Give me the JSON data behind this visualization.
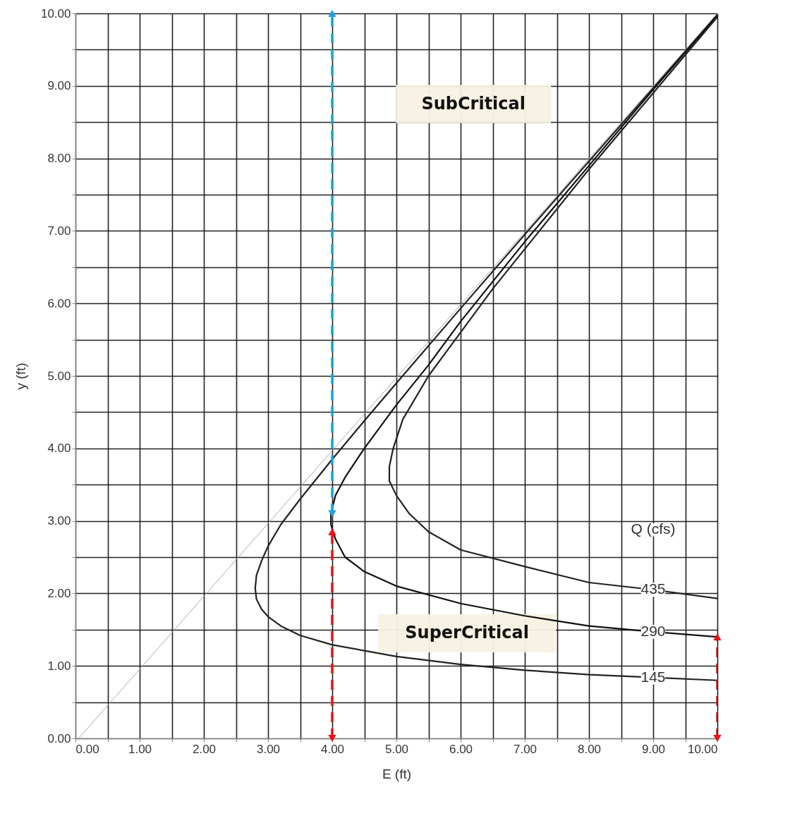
{
  "chart_data": {
    "type": "line",
    "xlabel": "E (ft)",
    "ylabel": "y (ft)",
    "legend_title": "Q (cfs)",
    "xlim": [
      0,
      10
    ],
    "ylim": [
      0,
      10
    ],
    "xticks": [
      {
        "value": 0,
        "label": "0.00"
      },
      {
        "value": 0.5,
        "label": null
      },
      {
        "value": 1,
        "label": "1.00"
      },
      {
        "value": 1.5,
        "label": null
      },
      {
        "value": 2,
        "label": "2.00"
      },
      {
        "value": 2.5,
        "label": null
      },
      {
        "value": 3,
        "label": "3.00"
      },
      {
        "value": 3.5,
        "label": null
      },
      {
        "value": 4,
        "label": "4.00"
      },
      {
        "value": 4.5,
        "label": null
      },
      {
        "value": 5,
        "label": "5.00"
      },
      {
        "value": 5.5,
        "label": null
      },
      {
        "value": 6,
        "label": "6.00"
      },
      {
        "value": 6.5,
        "label": null
      },
      {
        "value": 7,
        "label": "7.00"
      },
      {
        "value": 7.5,
        "label": null
      },
      {
        "value": 8,
        "label": "8.00"
      },
      {
        "value": 8.5,
        "label": null
      },
      {
        "value": 9,
        "label": "9.00"
      },
      {
        "value": 9.5,
        "label": null
      },
      {
        "value": 10,
        "label": "10.00"
      }
    ],
    "yticks": [
      {
        "value": 0,
        "label": "0.00"
      },
      {
        "value": 0.5,
        "label": null
      },
      {
        "value": 1,
        "label": "1.00"
      },
      {
        "value": 1.5,
        "label": null
      },
      {
        "value": 2,
        "label": "2.00"
      },
      {
        "value": 2.5,
        "label": null
      },
      {
        "value": 3,
        "label": "3.00"
      },
      {
        "value": 3.5,
        "label": null
      },
      {
        "value": 4,
        "label": "4.00"
      },
      {
        "value": 4.5,
        "label": null
      },
      {
        "value": 5,
        "label": "5.00"
      },
      {
        "value": 5.5,
        "label": null
      },
      {
        "value": 6,
        "label": "6.00"
      },
      {
        "value": 6.5,
        "label": null
      },
      {
        "value": 7,
        "label": "7.00"
      },
      {
        "value": 7.5,
        "label": null
      },
      {
        "value": 8,
        "label": "8.00"
      },
      {
        "value": 8.5,
        "label": null
      },
      {
        "value": 9,
        "label": "9.00"
      },
      {
        "value": 9.5,
        "label": null
      },
      {
        "value": 10,
        "label": "10.00"
      }
    ],
    "grid": true,
    "series": [
      {
        "color": "#aaaaaa",
        "x": [
          0.05,
          10
        ],
        "values": [
          0,
          10
        ]
      },
      {
        "name": "145",
        "color": "#222222",
        "x": [
          10,
          9,
          8,
          7,
          6,
          5,
          4,
          3.5,
          3.2,
          3.0,
          2.9,
          2.82,
          2.8,
          2.82,
          2.9,
          3.0,
          3.2,
          3.5,
          4,
          4.5,
          5,
          6,
          7,
          8,
          9,
          10
        ],
        "values": [
          0.8,
          0.84,
          0.88,
          0.94,
          1.02,
          1.13,
          1.29,
          1.42,
          1.55,
          1.68,
          1.78,
          1.92,
          2.07,
          2.25,
          2.45,
          2.65,
          2.95,
          3.3,
          3.85,
          4.38,
          4.9,
          5.93,
          6.95,
          7.96,
          8.97,
          9.98
        ]
      },
      {
        "name": "290",
        "color": "#111111",
        "x": [
          10,
          9,
          8,
          7,
          6,
          5,
          4.5,
          4.2,
          4.05,
          3.98,
          3.98,
          4.05,
          4.2,
          4.5,
          5,
          5.5,
          6,
          7,
          8,
          9,
          10
        ],
        "values": [
          1.4,
          1.47,
          1.55,
          1.69,
          1.86,
          2.1,
          2.3,
          2.5,
          2.75,
          2.95,
          3.1,
          3.35,
          3.6,
          4.0,
          4.6,
          5.15,
          5.75,
          6.85,
          7.9,
          8.95,
          9.97
        ]
      },
      {
        "name": "435",
        "color": "#222222",
        "x": [
          10,
          9,
          8,
          7,
          6,
          5.5,
          5.2,
          5.0,
          4.89,
          4.89,
          4.95,
          5.1,
          5.5,
          6,
          6.5,
          7,
          8,
          9,
          10
        ],
        "values": [
          1.93,
          2.05,
          2.15,
          2.37,
          2.6,
          2.85,
          3.1,
          3.35,
          3.55,
          3.75,
          4.0,
          4.4,
          5.0,
          5.6,
          6.2,
          6.75,
          7.85,
          8.9,
          9.95
        ]
      },
      {
        "color": "#1ba1e2",
        "x": [
          4,
          4
        ],
        "values": [
          3.1,
          10
        ],
        "line_style": "dashed",
        "marker": "triangle"
      },
      {
        "color": "#ee1111",
        "x": [
          4,
          4
        ],
        "values": [
          0,
          2.85
        ],
        "line_style": "dashed",
        "marker": "triangle"
      },
      {
        "color": "#ee1111",
        "x": [
          10,
          10
        ],
        "values": [
          0,
          1.4
        ],
        "line_style": "dashed",
        "marker": "triangle"
      }
    ],
    "annotations": [
      "SubCritical",
      "SuperCritical"
    ]
  }
}
